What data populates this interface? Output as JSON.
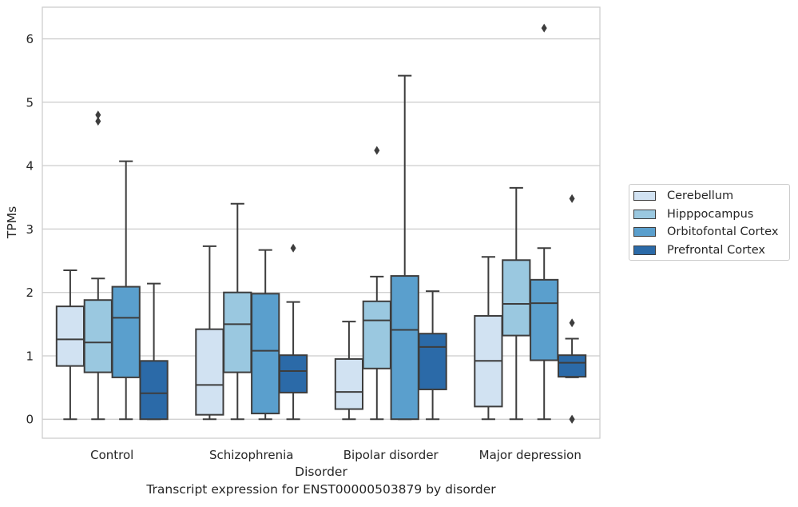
{
  "chart_data": {
    "type": "box",
    "title": "",
    "caption": "Transcript expression for ENST00000503879 by disorder",
    "xlabel": "Disorder",
    "ylabel": "TPMs",
    "ylim": [
      -0.3,
      6.5
    ],
    "yticks": [
      "0",
      "1",
      "2",
      "3",
      "4",
      "5",
      "6"
    ],
    "grid": "horizontal",
    "legend_position": "right",
    "categories": [
      "Control",
      "Schizophrenia",
      "Bipolar disorder",
      "Major depression"
    ],
    "series": [
      {
        "name": "Cerebellum",
        "color": "#d1e2f2",
        "boxes": [
          {
            "whislo": 0.0,
            "q1": 0.84,
            "med": 1.26,
            "q3": 1.78,
            "whishi": 2.35,
            "fliers": []
          },
          {
            "whislo": 0.0,
            "q1": 0.07,
            "med": 0.54,
            "q3": 1.42,
            "whishi": 2.73,
            "fliers": []
          },
          {
            "whislo": 0.0,
            "q1": 0.16,
            "med": 0.43,
            "q3": 0.95,
            "whishi": 1.54,
            "fliers": []
          },
          {
            "whislo": 0.0,
            "q1": 0.2,
            "med": 0.92,
            "q3": 1.63,
            "whishi": 2.56,
            "fliers": []
          }
        ]
      },
      {
        "name": "Hipppocampus",
        "color": "#9ac8e0",
        "boxes": [
          {
            "whislo": 0.0,
            "q1": 0.74,
            "med": 1.21,
            "q3": 1.88,
            "whishi": 2.22,
            "fliers": [
              4.7,
              4.8
            ]
          },
          {
            "whislo": 0.0,
            "q1": 0.74,
            "med": 1.5,
            "q3": 2.0,
            "whishi": 3.4,
            "fliers": []
          },
          {
            "whislo": 0.0,
            "q1": 0.8,
            "med": 1.56,
            "q3": 1.86,
            "whishi": 2.25,
            "fliers": [
              4.24
            ]
          },
          {
            "whislo": 0.0,
            "q1": 1.32,
            "med": 1.82,
            "q3": 2.51,
            "whishi": 3.65,
            "fliers": []
          }
        ]
      },
      {
        "name": "Orbitofontal Cortex",
        "color": "#5a9fcd",
        "boxes": [
          {
            "whislo": 0.0,
            "q1": 0.66,
            "med": 1.6,
            "q3": 2.09,
            "whishi": 4.07,
            "fliers": []
          },
          {
            "whislo": 0.0,
            "q1": 0.09,
            "med": 1.08,
            "q3": 1.98,
            "whishi": 2.67,
            "fliers": []
          },
          {
            "whislo": 0.0,
            "q1": 0.0,
            "med": 1.41,
            "q3": 2.26,
            "whishi": 5.42,
            "fliers": []
          },
          {
            "whislo": 0.0,
            "q1": 0.93,
            "med": 1.83,
            "q3": 2.2,
            "whishi": 2.7,
            "fliers": [
              6.17
            ]
          }
        ]
      },
      {
        "name": "Prefrontal Cortex",
        "color": "#2b6aa8",
        "boxes": [
          {
            "whislo": 0.0,
            "q1": 0.0,
            "med": 0.41,
            "q3": 0.92,
            "whishi": 2.14,
            "fliers": []
          },
          {
            "whislo": 0.0,
            "q1": 0.42,
            "med": 0.76,
            "q3": 1.01,
            "whishi": 1.85,
            "fliers": [
              2.7
            ]
          },
          {
            "whislo": 0.0,
            "q1": 0.47,
            "med": 1.14,
            "q3": 1.35,
            "whishi": 2.02,
            "fliers": []
          },
          {
            "whislo": 0.66,
            "q1": 0.67,
            "med": 0.89,
            "q3": 1.01,
            "whishi": 1.27,
            "fliers": [
              3.48,
              1.52,
              0.0,
              0.0
            ]
          }
        ]
      }
    ]
  }
}
